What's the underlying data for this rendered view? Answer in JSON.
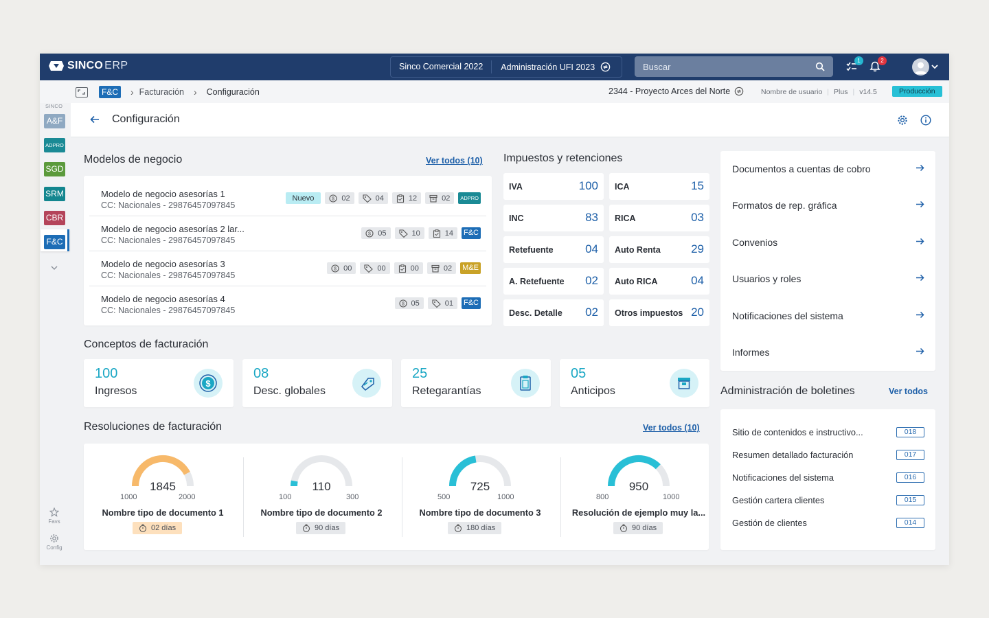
{
  "topbar": {
    "brand_main": "SINCO",
    "brand_sub": "ERP",
    "context_company": "Sinco Comercial 2022",
    "context_unit": "Administración UFI 2023",
    "search_placeholder": "Buscar",
    "tasks_badge": "1",
    "notifications_badge": "2"
  },
  "subbar": {
    "module_tag": "F&C",
    "breadcrumb_1": "Facturación",
    "breadcrumb_2": "Configuración",
    "project": "2344 - Proyecto Arces del Norte",
    "username": "Nombre de usuario",
    "plan": "Plus",
    "version": "v14.5",
    "environment": "Producción"
  },
  "sidebar": {
    "header": "SINCO",
    "modules": [
      {
        "label": "A&F",
        "color": "#8fa9c2"
      },
      {
        "label": "ADPRO",
        "color": "#1a8a95"
      },
      {
        "label": "SGD",
        "color": "#5b9a3c"
      },
      {
        "label": "SRM",
        "color": "#13868f"
      },
      {
        "label": "CBR",
        "color": "#b4445a"
      },
      {
        "label": "F&C",
        "color": "#1d6db6"
      }
    ],
    "favs_label": "Favs",
    "config_label": "Config"
  },
  "page": {
    "title": "Configuración"
  },
  "modelos": {
    "title": "Modelos de negocio",
    "view_all": "Ver todos (10)",
    "rows": [
      {
        "name": "Modelo de negocio asesorías 1",
        "cc": "CC: Nacionales - 29876457097845",
        "badge": "Nuevo",
        "c1": "02",
        "c2": "04",
        "c3": "12",
        "c4": "02",
        "tag": "ADPRO",
        "tag_color": "#1a8a95"
      },
      {
        "name": "Modelo de negocio asesorías 2 lar...",
        "cc": "CC: Nacionales - 29876457097845",
        "badge": "",
        "c1": "05",
        "c2": "10",
        "c3": "14",
        "c4": "",
        "tag": "F&C",
        "tag_color": "#1d6db6"
      },
      {
        "name": "Modelo de negocio asesorías 3",
        "cc": "CC: Nacionales - 29876457097845",
        "badge": "",
        "c1": "00",
        "c2": "00",
        "c3": "00",
        "c4": "02",
        "tag": "M&E",
        "tag_color": "#c9a227"
      },
      {
        "name": "Modelo de negocio asesorías 4",
        "cc": "CC: Nacionales - 29876457097845",
        "badge": "",
        "c1": "05",
        "c2": "01",
        "c3": "",
        "c4": "",
        "tag": "F&C",
        "tag_color": "#1d6db6"
      }
    ]
  },
  "impuestos": {
    "title": "Impuestos y retenciones",
    "items": [
      {
        "label": "IVA",
        "value": "100"
      },
      {
        "label": "ICA",
        "value": "15"
      },
      {
        "label": "INC",
        "value": "83"
      },
      {
        "label": "RICA",
        "value": "03"
      },
      {
        "label": "Retefuente",
        "value": "04"
      },
      {
        "label": "Auto Renta",
        "value": "29"
      },
      {
        "label": "A. Retefuente",
        "value": "02"
      },
      {
        "label": "Auto RICA",
        "value": "04"
      },
      {
        "label": "Desc. Detalle",
        "value": "02"
      },
      {
        "label": "Otros impuestos",
        "value": "20"
      }
    ]
  },
  "links": {
    "items": [
      "Documentos a cuentas de cobro",
      "Formatos de rep. gráfica",
      "Convenios",
      "Usuarios y roles",
      "Notificaciones del sistema",
      "Informes"
    ]
  },
  "conceptos": {
    "title": "Conceptos de facturación",
    "items": [
      {
        "value": "100",
        "label": "Ingresos",
        "icon": "dollar-coin-icon"
      },
      {
        "value": "08",
        "label": "Desc. globales",
        "icon": "discount-tag-icon"
      },
      {
        "value": "25",
        "label": "Retegarantías",
        "icon": "clipboard-icon"
      },
      {
        "value": "05",
        "label": "Anticipos",
        "icon": "archive-box-icon"
      }
    ]
  },
  "resoluciones": {
    "title": "Resoluciones de facturación",
    "view_all": "Ver todos (10)",
    "gauges": [
      {
        "value": "1845",
        "min": "1000",
        "max": "2000",
        "fraction": 0.845,
        "name": "Nombre tipo de documento 1",
        "days": "02 días",
        "color": "#f7b96a",
        "warn": true
      },
      {
        "value": "110",
        "min": "100",
        "max": "300",
        "fraction": 0.05,
        "name": "Nombre tipo de documento 2",
        "days": "90 días",
        "color": "#29bfd6",
        "warn": false
      },
      {
        "value": "725",
        "min": "500",
        "max": "1000",
        "fraction": 0.45,
        "name": "Nombre tipo de documento 3",
        "days": "180 días",
        "color": "#29bfd6",
        "warn": false
      },
      {
        "value": "950",
        "min": "800",
        "max": "1000",
        "fraction": 0.75,
        "name": "Resolución de ejemplo muy la...",
        "days": "90 días",
        "color": "#29bfd6",
        "warn": false
      }
    ]
  },
  "boletines": {
    "title": "Administración de boletines",
    "view_all": "Ver todos",
    "items": [
      {
        "label": "Sitio de contenidos e instructivo...",
        "count": "018"
      },
      {
        "label": "Resumen detallado facturación",
        "count": "017"
      },
      {
        "label": "Notificaciones del sistema",
        "count": "016"
      },
      {
        "label": "Gestión cartera clientes",
        "count": "015"
      },
      {
        "label": "Gestión de clientes",
        "count": "014"
      }
    ]
  }
}
